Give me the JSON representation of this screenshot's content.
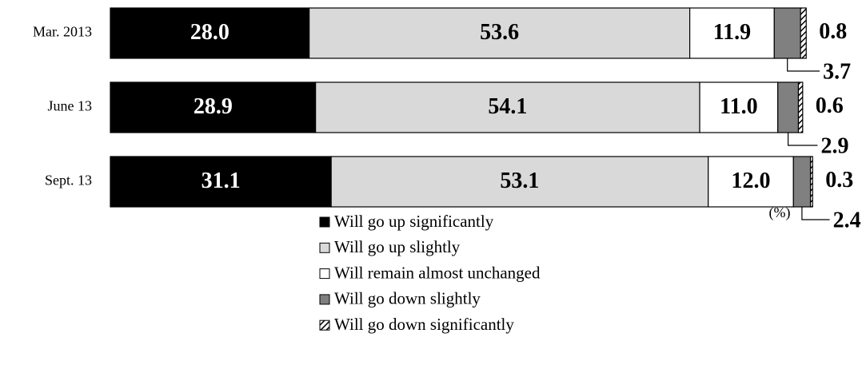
{
  "chart_data": {
    "type": "stacked-bar-horizontal",
    "categories": [
      "Mar. 2013",
      "June 13",
      "Sept. 13"
    ],
    "xlim": [
      0,
      100
    ],
    "unit_note": "(%)",
    "series": [
      {
        "name": "Will go up significantly",
        "color": "#000000",
        "label_color": "#ffffff",
        "values": [
          28.0,
          28.9,
          31.1
        ],
        "value_labels": [
          "28.0",
          "28.9",
          "31.1"
        ]
      },
      {
        "name": "Will go up slightly",
        "color": "#d9d9d9",
        "label_color": "#000000",
        "values": [
          53.6,
          54.1,
          53.1
        ],
        "value_labels": [
          "53.6",
          "54.1",
          "53.1"
        ]
      },
      {
        "name": "Will remain almost unchanged",
        "color": "#ffffff",
        "label_color": "#000000",
        "values": [
          11.9,
          11.0,
          12.0
        ],
        "value_labels": [
          "11.9",
          "11.0",
          "12.0"
        ]
      },
      {
        "name": "Will go down slightly",
        "color": "#808080",
        "label_color": "#000000",
        "values": [
          3.7,
          2.9,
          2.4
        ],
        "value_labels": [
          "3.7",
          "2.9",
          "2.4"
        ]
      },
      {
        "name": "Will go down significantly",
        "color": "#ffffff",
        "hatch": true,
        "label_color": "#000000",
        "values": [
          0.8,
          0.6,
          0.3
        ],
        "value_labels": [
          "0.8",
          "0.6",
          "0.3"
        ]
      }
    ]
  }
}
